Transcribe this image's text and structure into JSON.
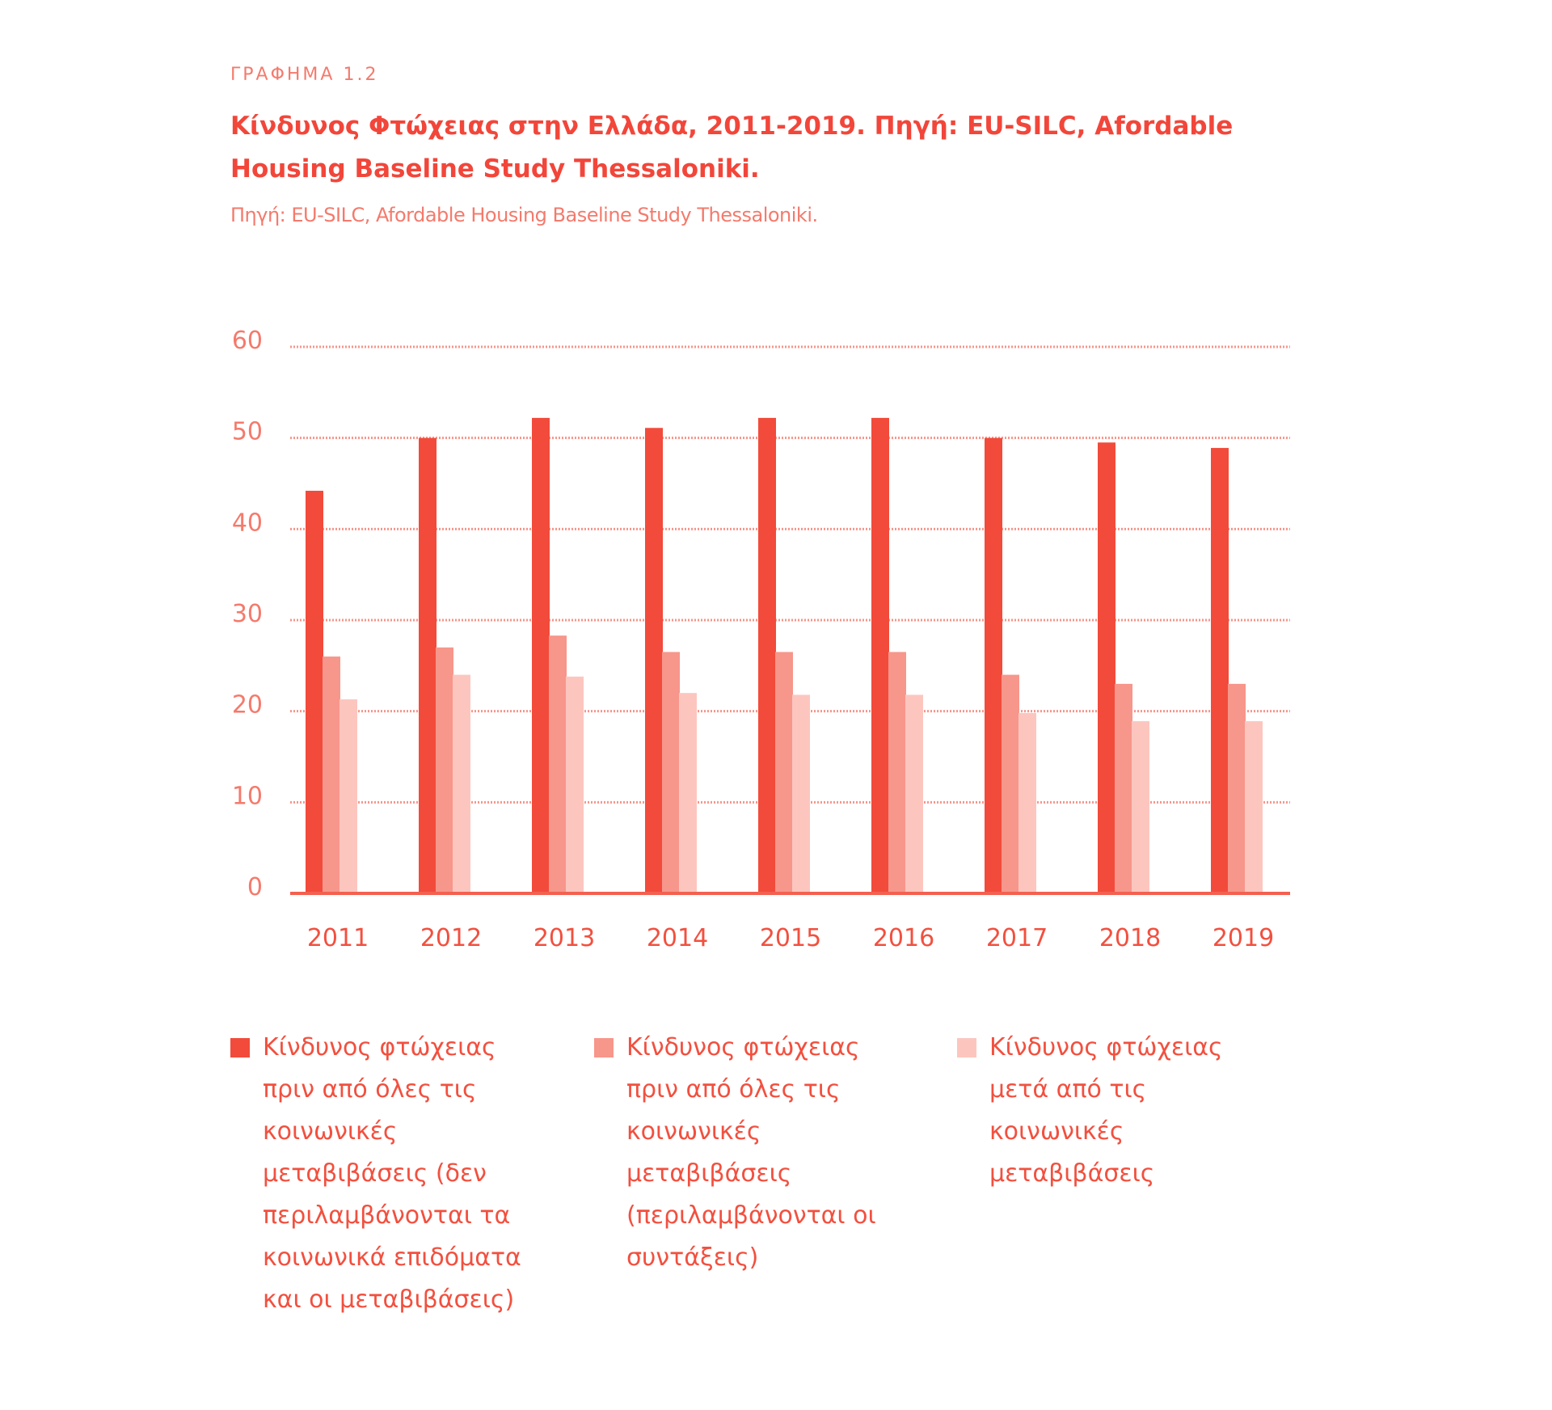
{
  "kicker": "ΓΡΑΦΗΜΑ 1.2",
  "title": "Κίνδυνος Φτώχειας στην Ελλάδα, 2011-2019. Πηγή: EU-SILC, Afordable Housing Baseline Study Thessaloniki.",
  "subtitle": "Πηγή: EU-SILC, Afordable Housing Baseline Study Thessaloniki.",
  "chart_data": {
    "type": "bar",
    "title": "Κίνδυνος Φτώχειας στην Ελλάδα, 2011-2019",
    "xlabel": "",
    "ylabel": "",
    "ylim": [
      0,
      60
    ],
    "yticks": [
      0,
      10,
      20,
      30,
      40,
      50,
      60
    ],
    "grid": true,
    "legend_placement": "bottom",
    "categories": [
      "2011",
      "2012",
      "2013",
      "2014",
      "2015",
      "2016",
      "2017",
      "2018",
      "2019"
    ],
    "series": [
      {
        "name": "Κίνδυνος φτώχειας πριν από όλες τις κοινωνικές μεταβιβάσεις (δεν περιλαμβάνονται τα κοινωνικά επιδόματα και οι μεταβιβάσεις)",
        "color": "#f24b3b",
        "values": [
          44.2,
          50.0,
          52.2,
          51.1,
          52.2,
          52.2,
          50.0,
          49.5,
          48.9
        ]
      },
      {
        "name": "Κίνδυνος φτώχειας πριν από όλες τις κοινωνικές μεταβιβάσεις (περιλαμβάνονται οι συντάξεις)",
        "color": "#f7968b",
        "values": [
          26.0,
          27.0,
          28.3,
          26.5,
          26.5,
          26.5,
          24.0,
          23.0,
          23.0
        ]
      },
      {
        "name": "Κίνδυνος φτώχειας μετά από τις κοινωνικές μεταβιβάσεις",
        "color": "#fcc6bf",
        "values": [
          21.3,
          24.0,
          23.8,
          22.0,
          21.8,
          21.8,
          19.8,
          18.9,
          18.9
        ]
      }
    ]
  }
}
